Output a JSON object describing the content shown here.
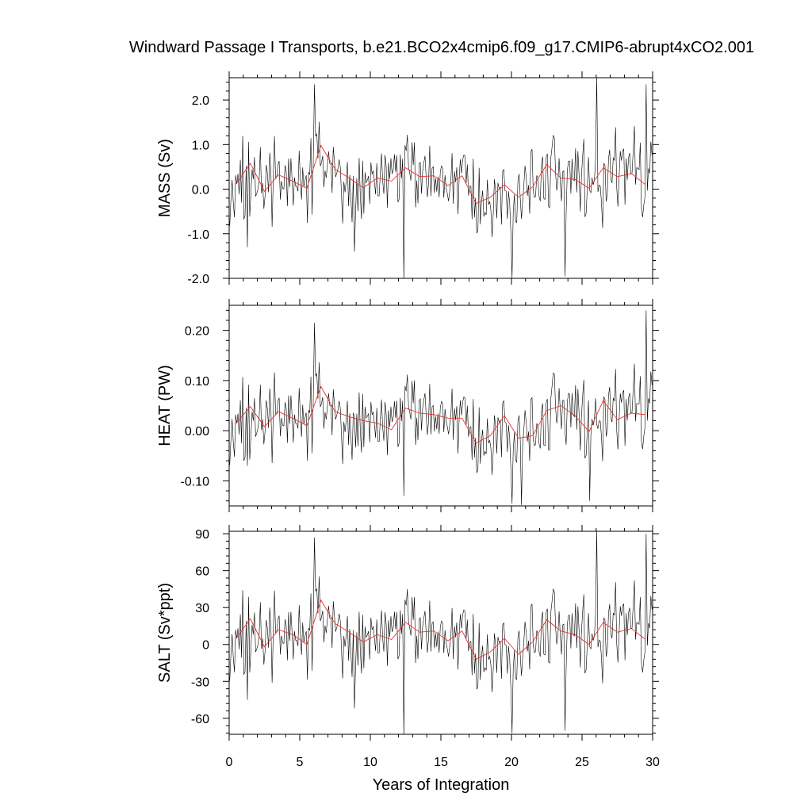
{
  "chart_data": {
    "type": "line",
    "title": "Windward Passage I Transports, b.e21.BCO2x4cmip6.f09_g17.CMIP6-abrupt4xCO2.001",
    "xlabel": "Years of Integration",
    "xlim": [
      0,
      30
    ],
    "x_ticks": [
      "0",
      "5",
      "10",
      "15",
      "20",
      "25",
      "30"
    ],
    "x_tick_values": [
      0,
      5,
      10,
      15,
      20,
      25,
      30
    ],
    "series_note_colors": {
      "monthly": "#000000",
      "annual_mean": "#e8312c"
    },
    "panels": [
      {
        "name": "mass",
        "ylabel": "MASS (Sv)",
        "ylim": [
          -2.0,
          2.5
        ],
        "y_tick_values": [
          -2.0,
          -1.0,
          0.0,
          1.0,
          2.0
        ],
        "y_ticks": [
          "-2.0",
          "-1.0",
          "0.0",
          "1.0",
          "2.0"
        ],
        "annual_x": [
          0.5,
          1.5,
          2.5,
          3.5,
          4.5,
          5.5,
          6.5,
          7.5,
          8.5,
          9.5,
          10.5,
          11.5,
          12.5,
          13.5,
          14.5,
          15.5,
          16.5,
          17.5,
          18.5,
          19.5,
          20.5,
          21.5,
          22.5,
          23.5,
          24.5,
          25.5,
          26.5,
          27.5,
          28.5,
          29.5
        ],
        "annual": [
          0.12,
          0.58,
          -0.05,
          0.32,
          0.18,
          0.02,
          0.98,
          0.45,
          0.25,
          0.03,
          0.25,
          0.18,
          0.48,
          0.28,
          0.3,
          0.08,
          0.3,
          -0.32,
          -0.18,
          0.1,
          -0.18,
          0.05,
          0.55,
          0.25,
          0.22,
          0.02,
          0.48,
          0.28,
          0.35,
          0.1
        ],
        "extremes": [
          [
            6.0,
            2.35
          ],
          [
            12.35,
            -2.05
          ],
          [
            20.0,
            -2.0
          ],
          [
            23.75,
            -1.95
          ],
          [
            26.0,
            2.55
          ],
          [
            29.5,
            2.35
          ],
          [
            1.3,
            -1.3
          ],
          [
            8.9,
            -1.4
          ]
        ]
      },
      {
        "name": "heat",
        "ylabel": "HEAT (PW)",
        "ylim": [
          -0.15,
          0.25
        ],
        "y_tick_values": [
          -0.1,
          0.0,
          0.1,
          0.2
        ],
        "y_ticks": [
          "-0.10",
          "0.00",
          "0.10",
          "0.20"
        ],
        "annual_x": [
          0.5,
          1.5,
          2.5,
          3.5,
          4.5,
          5.5,
          6.5,
          7.5,
          8.5,
          9.5,
          10.5,
          11.5,
          12.5,
          13.5,
          14.5,
          15.5,
          16.5,
          17.5,
          18.5,
          19.5,
          20.5,
          21.5,
          22.5,
          23.5,
          24.5,
          25.5,
          26.5,
          27.5,
          28.5,
          29.5
        ],
        "annual": [
          0.015,
          0.048,
          0.008,
          0.038,
          0.025,
          0.01,
          0.088,
          0.038,
          0.028,
          0.02,
          0.015,
          0.002,
          0.045,
          0.035,
          0.032,
          0.025,
          0.025,
          -0.025,
          -0.01,
          0.03,
          -0.015,
          -0.01,
          0.04,
          0.05,
          0.03,
          -0.002,
          0.06,
          0.022,
          0.035,
          0.032
        ],
        "extremes": [
          [
            6.0,
            0.215
          ],
          [
            20.0,
            -0.145
          ],
          [
            20.7,
            -0.148
          ],
          [
            25.5,
            -0.14
          ],
          [
            29.5,
            0.24
          ],
          [
            1.3,
            -0.07
          ],
          [
            12.35,
            -0.13
          ]
        ]
      },
      {
        "name": "salt",
        "ylabel": "SALT (Sv*ppt)",
        "ylim": [
          -73,
          92
        ],
        "y_tick_values": [
          -60,
          -30,
          0,
          30,
          60,
          90
        ],
        "y_ticks": [
          "-60",
          "-30",
          "0",
          "30",
          "60",
          "90"
        ],
        "annual_x": [
          0.5,
          1.5,
          2.5,
          3.5,
          4.5,
          5.5,
          6.5,
          7.5,
          8.5,
          9.5,
          10.5,
          11.5,
          12.5,
          13.5,
          14.5,
          15.5,
          16.5,
          17.5,
          18.5,
          19.5,
          20.5,
          21.5,
          22.5,
          23.5,
          24.5,
          25.5,
          26.5,
          27.5,
          28.5,
          29.5
        ],
        "annual": [
          5,
          21,
          -2,
          12,
          8,
          0,
          36,
          17,
          10,
          2,
          8,
          4,
          18,
          10,
          11,
          3,
          11,
          -12,
          -6,
          5,
          -8,
          2,
          20,
          11,
          8,
          0,
          18,
          10,
          13,
          4
        ],
        "extremes": [
          [
            6.0,
            87
          ],
          [
            12.35,
            -75
          ],
          [
            20.0,
            -72
          ],
          [
            23.75,
            -70
          ],
          [
            26.0,
            93
          ],
          [
            29.5,
            90
          ],
          [
            1.3,
            -45
          ],
          [
            8.9,
            -52
          ]
        ]
      }
    ]
  }
}
